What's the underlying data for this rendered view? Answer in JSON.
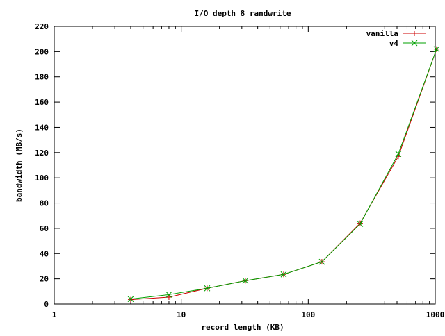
{
  "chart_data": {
    "type": "line",
    "title": "I/O depth 8 randwrite",
    "xlabel": "record length (KB)",
    "ylabel": "bandwidth (MB/s)",
    "x_scale": "log",
    "xlim": [
      1,
      1000
    ],
    "ylim": [
      0,
      220
    ],
    "x_ticks": [
      1,
      10,
      100,
      1000
    ],
    "x_tick_labels": [
      "1",
      "10",
      "100",
      "1000"
    ],
    "y_ticks": [
      0,
      20,
      40,
      60,
      80,
      100,
      120,
      140,
      160,
      180,
      200,
      220
    ],
    "y_tick_labels": [
      "0",
      "20",
      "40",
      "60",
      "80",
      "100",
      "120",
      "140",
      "160",
      "180",
      "200",
      "220"
    ],
    "grid": false,
    "legend_position": "top-right",
    "x": [
      4,
      8,
      16,
      32,
      64,
      128,
      256,
      512,
      1024
    ],
    "series": [
      {
        "name": "vanilla",
        "color": "#cc0000",
        "marker": "plus",
        "values": [
          3.5,
          5.5,
          12.5,
          18.5,
          23.5,
          33.5,
          64.0,
          117.0,
          202.0
        ]
      },
      {
        "name": "v4",
        "color": "#00a000",
        "marker": "cross",
        "values": [
          4.0,
          7.5,
          12.5,
          18.5,
          23.5,
          33.5,
          63.5,
          119.0,
          202.0
        ]
      }
    ]
  }
}
